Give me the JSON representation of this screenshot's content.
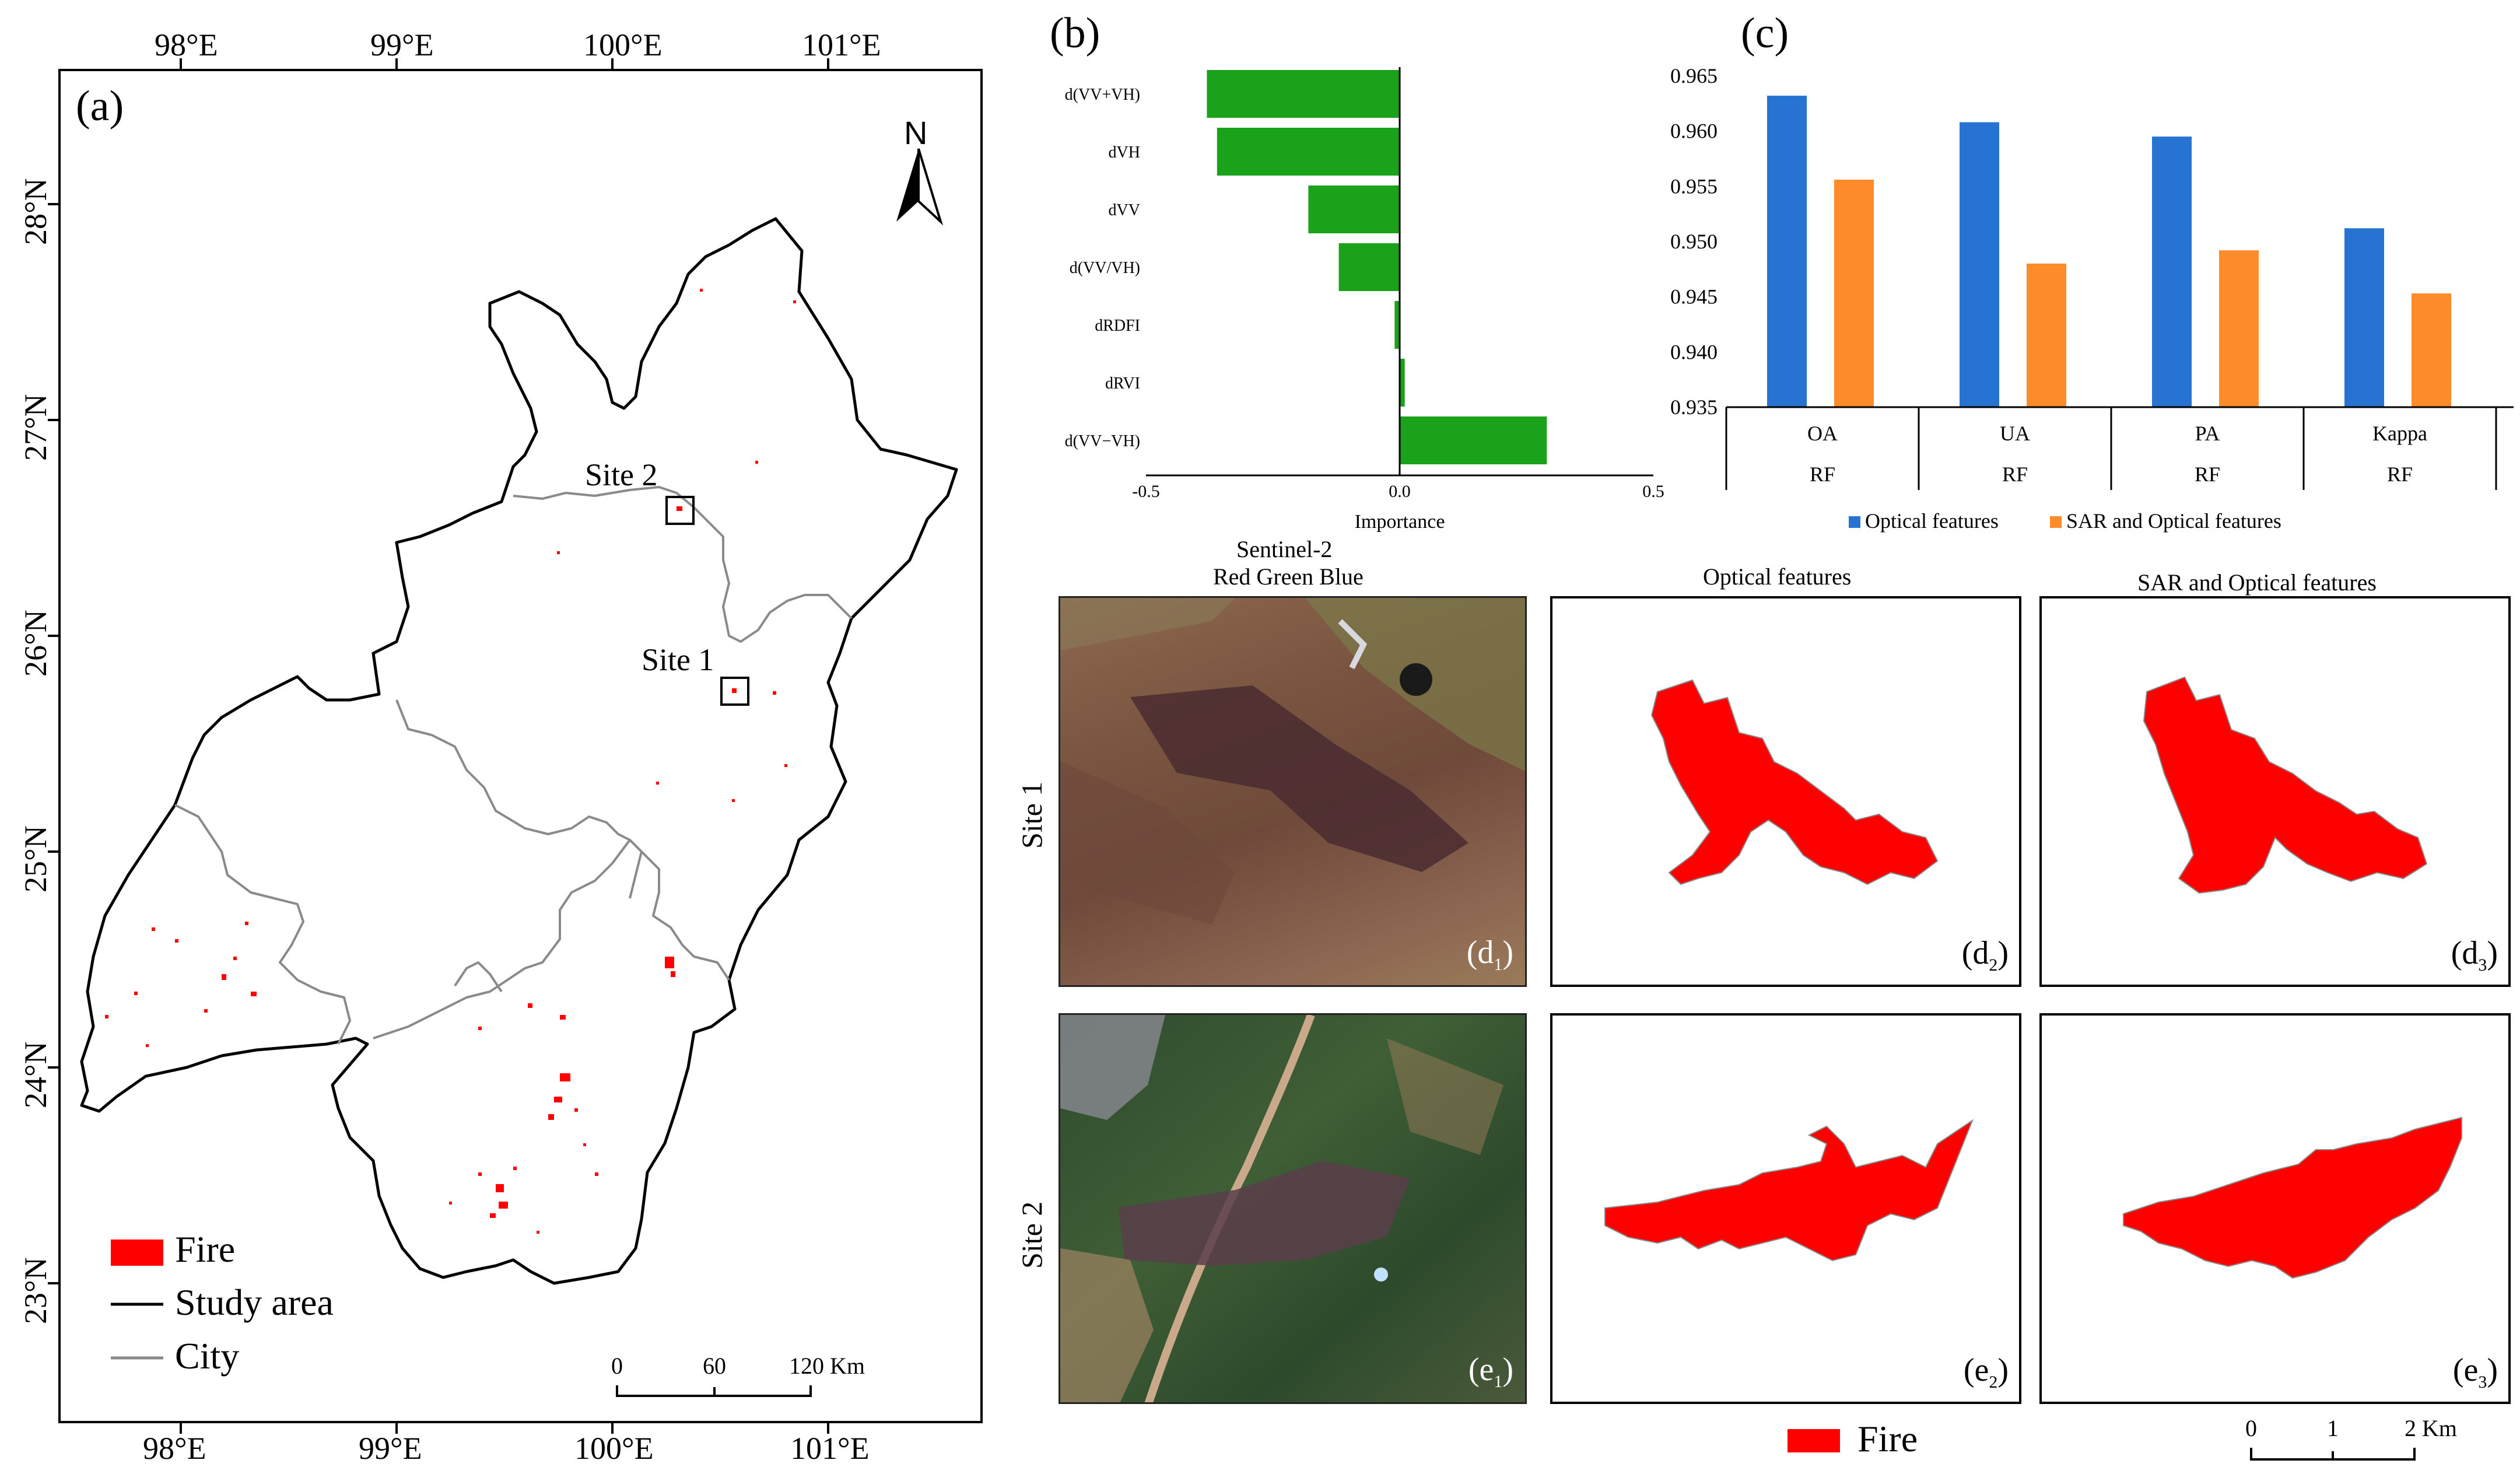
{
  "panel_a": {
    "label": "(a)",
    "lon_labels": [
      "98°E",
      "99°E",
      "100°E",
      "101°E"
    ],
    "lat_labels": [
      "28°N",
      "27°N",
      "26°N",
      "25°N",
      "24°N",
      "23°N"
    ],
    "north": "N",
    "site2": "Site 2",
    "site1": "Site 1",
    "legend": [
      {
        "label": "Fire",
        "color": "#ff0000",
        "kind": "patch"
      },
      {
        "label": "Study area",
        "color": "#000000",
        "kind": "line"
      },
      {
        "label": "City",
        "color": "#8a8a8a",
        "kind": "line"
      }
    ],
    "scale": {
      "t0": "0",
      "t1": "60",
      "t2": "120 Km"
    }
  },
  "panel_b": {
    "label": "(b)",
    "xlabel": "Importance",
    "ticks": [
      "-0.5",
      "0.0",
      "0.5"
    ]
  },
  "panel_c": {
    "label": "(c)",
    "legend_a": "Optical features",
    "legend_b": "SAR and Optical features",
    "sub_label": "RF"
  },
  "chart_data": [
    {
      "type": "bar",
      "orientation": "horizontal",
      "title": "",
      "xlabel": "Importance",
      "ylabel": "",
      "xlim": [
        -0.5,
        0.5
      ],
      "categories": [
        "d(VV+VH)",
        "dVH",
        "dVV",
        "d(VV/VH)",
        "dRDFI",
        "dRVI",
        "d(VV−VH)"
      ],
      "values": [
        -0.38,
        -0.36,
        -0.18,
        -0.12,
        -0.01,
        0.01,
        0.29
      ],
      "color": "#1aa31a"
    },
    {
      "type": "bar",
      "title": "",
      "xlabel": "",
      "ylabel": "",
      "ylim": [
        0.935,
        0.965
      ],
      "yticks": [
        "0.965",
        "0.960",
        "0.955",
        "0.950",
        "0.945",
        "0.940",
        "0.935"
      ],
      "categories": [
        "OA",
        "UA",
        "PA",
        "Kappa"
      ],
      "series": [
        {
          "name": "Optical features",
          "color": "#2673d1",
          "values": [
            0.9632,
            0.9608,
            0.9595,
            0.9512
          ]
        },
        {
          "name": "SAR and Optical features",
          "color": "#ff8c2a",
          "values": [
            0.9556,
            0.948,
            0.9492,
            0.9453
          ]
        }
      ]
    }
  ],
  "panel_de": {
    "col1_title_1": "Sentinel-2",
    "col1_title_2": "Red Green Blue",
    "col2_title": "Optical features",
    "col3_title": "SAR  and  Optical features",
    "row1": "Site 1",
    "row2": "Site 2",
    "tags": {
      "d1": "(d",
      "d1s": "1",
      "d2": "(d",
      "d2s": "2",
      "d3": "(d",
      "d3s": "3",
      "e1": "(e",
      "e1s": "1",
      "e2": "(e",
      "e2s": "2",
      "e3": "(e",
      "e3s": "3",
      "close": ")"
    },
    "legend_fire": "Fire",
    "scale": {
      "t0": "0",
      "t1": "1",
      "t2": "2 Km"
    }
  }
}
